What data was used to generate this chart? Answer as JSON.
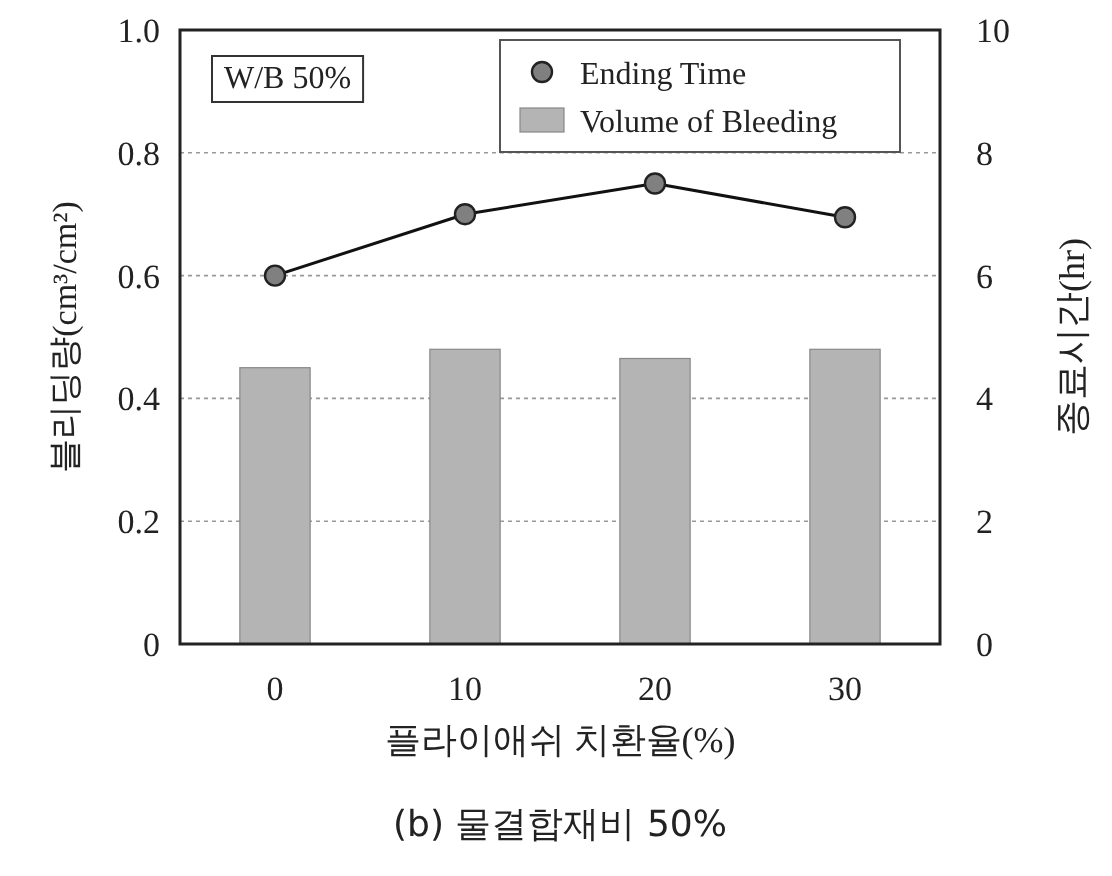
{
  "chart_data": {
    "type": "bar",
    "title": "(b) 물결합재비 50%",
    "xlabel": "플라이애쉬 치환율(%)",
    "ylabel": "블리딩량(cm³/cm²)",
    "y2label": "종료시간(hr)",
    "annotations": [
      "W/B 50%"
    ],
    "categories": [
      "0",
      "10",
      "20",
      "30"
    ],
    "series": [
      {
        "name": "Ending Time",
        "type": "line",
        "axis": "y2",
        "color": "#808080",
        "marker": "circle",
        "values": [
          6.0,
          7.0,
          7.5,
          6.95
        ]
      },
      {
        "name": "Volume of Bleeding",
        "color": "#b4b4b4",
        "values": [
          0.45,
          0.48,
          0.465,
          0.48
        ]
      }
    ],
    "ylim": [
      0,
      1.0
    ],
    "yticks": [
      0,
      0.2,
      0.4,
      0.6,
      0.8,
      {
        "value": 1.0,
        "label": "1.0"
      }
    ],
    "y2lim": [
      0,
      10
    ],
    "y2ticks": [
      0,
      2,
      4,
      6,
      8,
      10
    ],
    "grid": "y",
    "legend": "top right"
  }
}
